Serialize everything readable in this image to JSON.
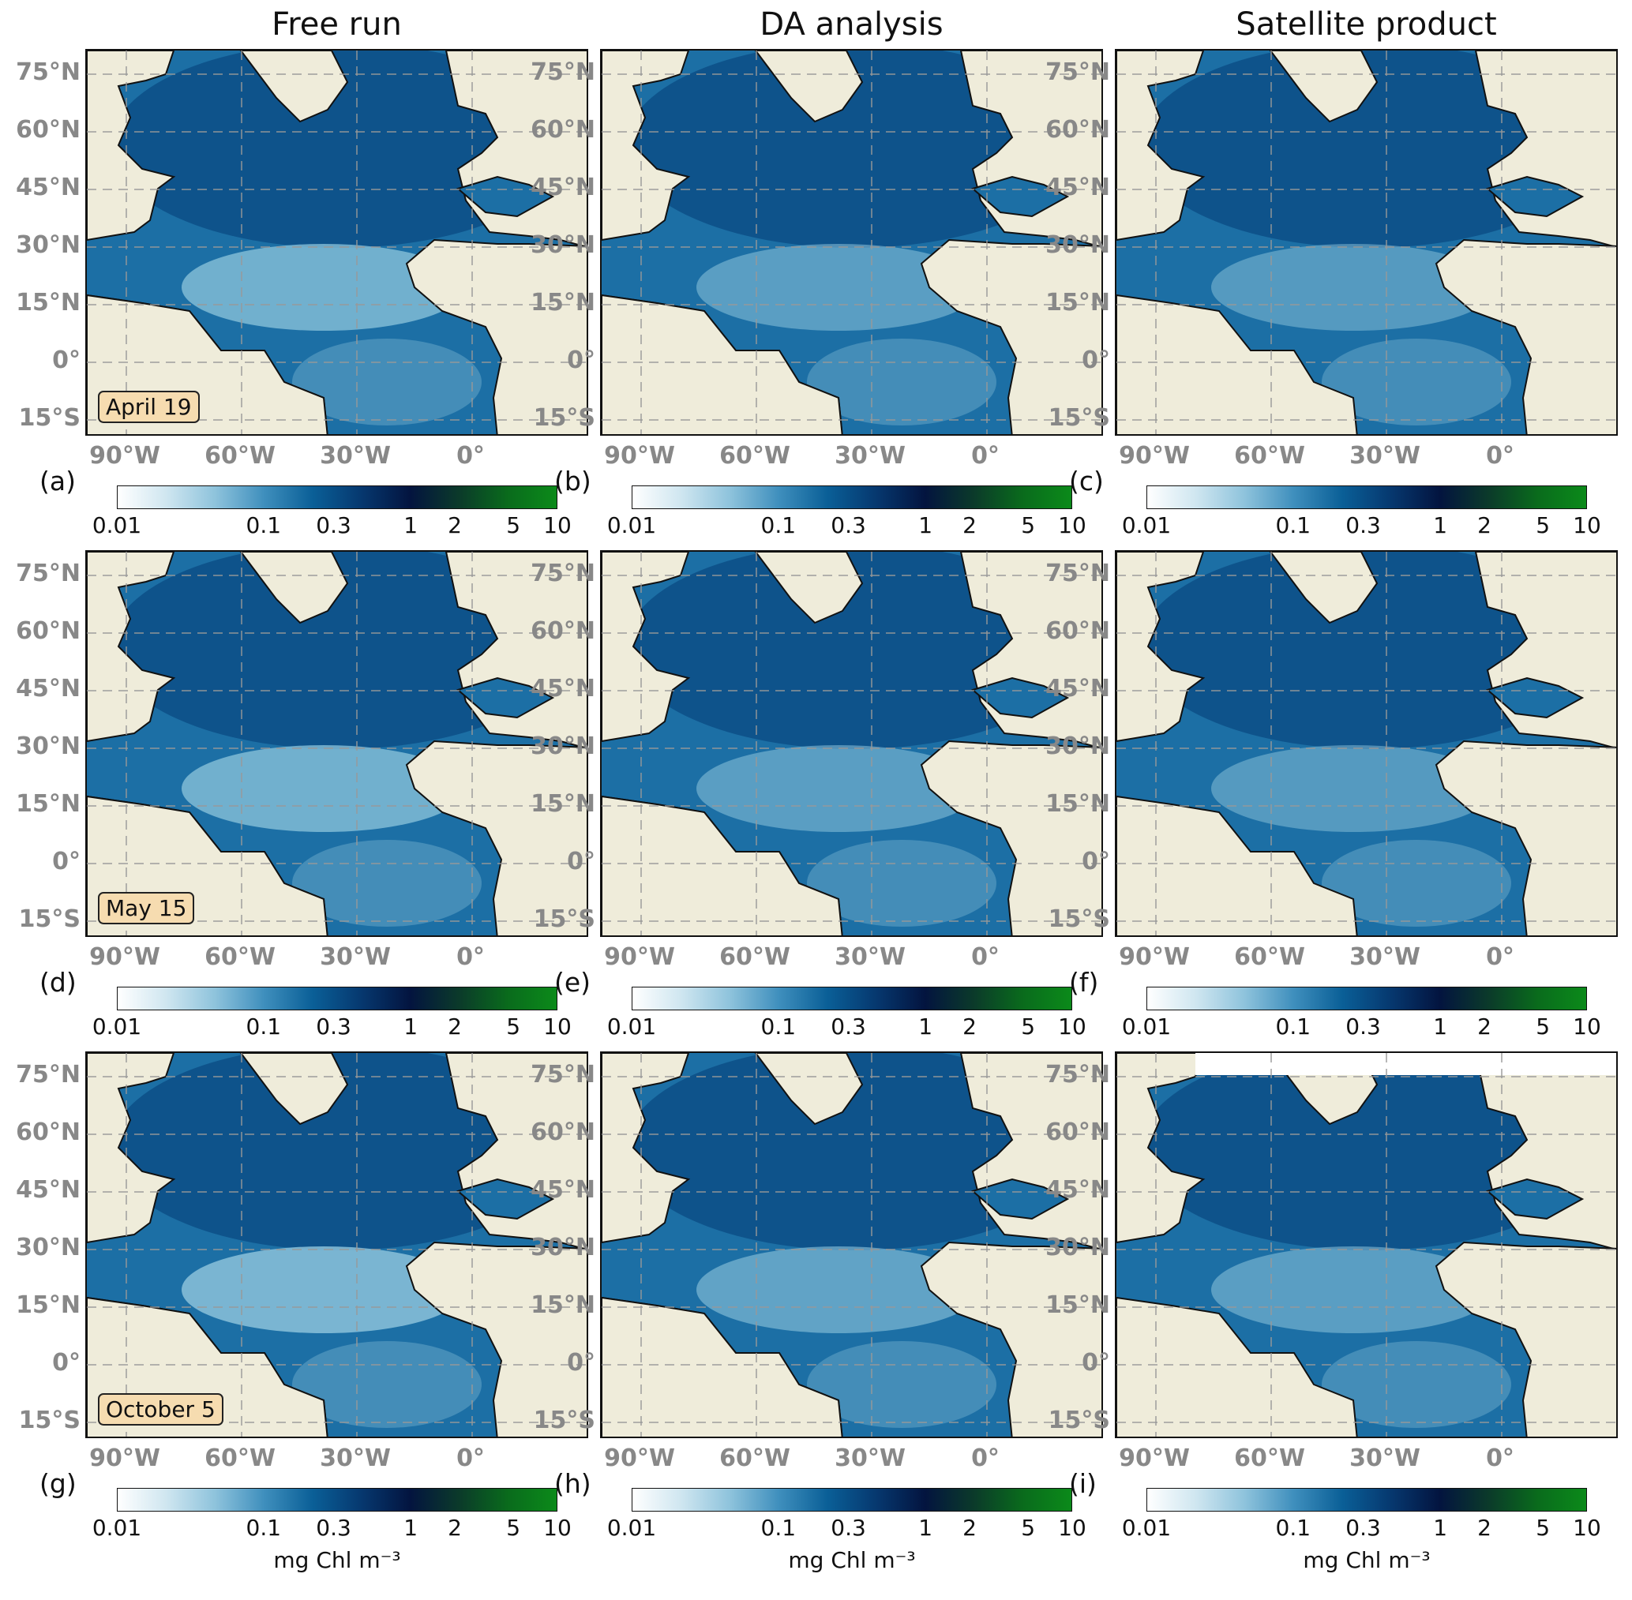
{
  "columns": [
    "Free run",
    "DA analysis",
    "Satellite product"
  ],
  "rows": [
    {
      "date": "April 19",
      "panels": [
        "(a)",
        "(b)",
        "(c)"
      ]
    },
    {
      "date": "May 15",
      "panels": [
        "(d)",
        "(e)",
        "(f)"
      ]
    },
    {
      "date": "October 5",
      "panels": [
        "(g)",
        "(h)",
        "(i)"
      ]
    }
  ],
  "lat_labels": [
    "75°N",
    "60°N",
    "45°N",
    "30°N",
    "15°N",
    "0°",
    "15°S"
  ],
  "lon_labels": [
    "90°W",
    "60°W",
    "30°W",
    "0°"
  ],
  "colorbar": {
    "ticks": [
      "0.01",
      "0.1",
      "0.3",
      "1",
      "2",
      "5",
      "10"
    ],
    "unit": "mg Chl m⁻³",
    "range": [
      0.01,
      10
    ],
    "scale": "log",
    "colors": [
      "#ffffff",
      "#cfe6f0",
      "#8ec3dc",
      "#3f8fbd",
      "#0a5f97",
      "#06386f",
      "#03143f",
      "#0b3a2a",
      "#0a6b1c",
      "#0b8a1a"
    ]
  },
  "colors": {
    "land": "#efecda",
    "ocean_deep": "#0c4f86",
    "ocean_mid": "#1c6fa5",
    "ocean_light": "#8ec5dc",
    "date_box": "#f6dcb0"
  }
}
